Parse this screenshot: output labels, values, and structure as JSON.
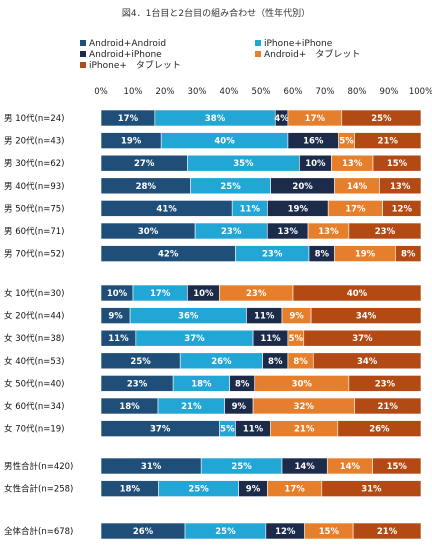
{
  "chart_data": {
    "type": "bar",
    "orientation": "horizontal",
    "stacked": true,
    "percent_stacked": true,
    "title": "図4．1台目と2台目の組み合わせ（性年代別）",
    "legend_position": "top",
    "xlim": [
      0,
      100
    ],
    "x_ticks": [
      "0%",
      "10%",
      "20%",
      "30%",
      "40%",
      "50%",
      "60%",
      "70%",
      "80%",
      "90%",
      "100%"
    ],
    "grid": false,
    "series": [
      {
        "name": "Android+Android",
        "color": "#1f4e79"
      },
      {
        "name": "iPhone+iPhone",
        "color": "#21a6d6"
      },
      {
        "name": "Android+iPhone",
        "color": "#1c2b4a"
      },
      {
        "name": "Android+　タブレット",
        "color": "#e57f2c"
      },
      {
        "name": "iPhone+　タブレット",
        "color": "#b34a14"
      }
    ],
    "groups": [
      {
        "rows": [
          {
            "label": "男 10代(n=24)",
            "values": [
              17,
              38,
              4,
              17,
              25
            ]
          },
          {
            "label": "男 20代(n=43)",
            "values": [
              19,
              40,
              16,
              5,
              21
            ]
          },
          {
            "label": "男 30代(n=62)",
            "values": [
              27,
              35,
              10,
              13,
              15
            ]
          },
          {
            "label": "男 40代(n=93)",
            "values": [
              28,
              25,
              20,
              14,
              13
            ]
          },
          {
            "label": "男 50代(n=75)",
            "values": [
              41,
              11,
              19,
              17,
              12
            ]
          },
          {
            "label": "男 60代(n=71)",
            "values": [
              30,
              23,
              13,
              13,
              23
            ]
          },
          {
            "label": "男 70代(n=52)",
            "values": [
              42,
              23,
              8,
              19,
              8
            ]
          }
        ]
      },
      {
        "rows": [
          {
            "label": "女 10代(n=30)",
            "values": [
              10,
              17,
              10,
              23,
              40
            ]
          },
          {
            "label": "女 20代(n=44)",
            "values": [
              9,
              36,
              11,
              9,
              34
            ]
          },
          {
            "label": "女 30代(n=38)",
            "values": [
              11,
              37,
              11,
              5,
              37
            ]
          },
          {
            "label": "女 40代(n=53)",
            "values": [
              25,
              26,
              8,
              8,
              34
            ]
          },
          {
            "label": "女 50代(n=40)",
            "values": [
              23,
              18,
              8,
              30,
              23
            ]
          },
          {
            "label": "女 60代(n=34)",
            "values": [
              18,
              21,
              9,
              32,
              21
            ]
          },
          {
            "label": "女 70代(n=19)",
            "values": [
              37,
              5,
              11,
              21,
              26
            ]
          }
        ]
      },
      {
        "rows": [
          {
            "label": "男性合計(n=420)",
            "values": [
              31,
              25,
              14,
              14,
              15
            ]
          },
          {
            "label": "女性合計(n=258)",
            "values": [
              18,
              25,
              9,
              17,
              31
            ]
          }
        ]
      },
      {
        "rows": [
          {
            "label": "全体合計(n=678)",
            "values": [
              26,
              25,
              12,
              15,
              21
            ]
          }
        ]
      }
    ]
  }
}
